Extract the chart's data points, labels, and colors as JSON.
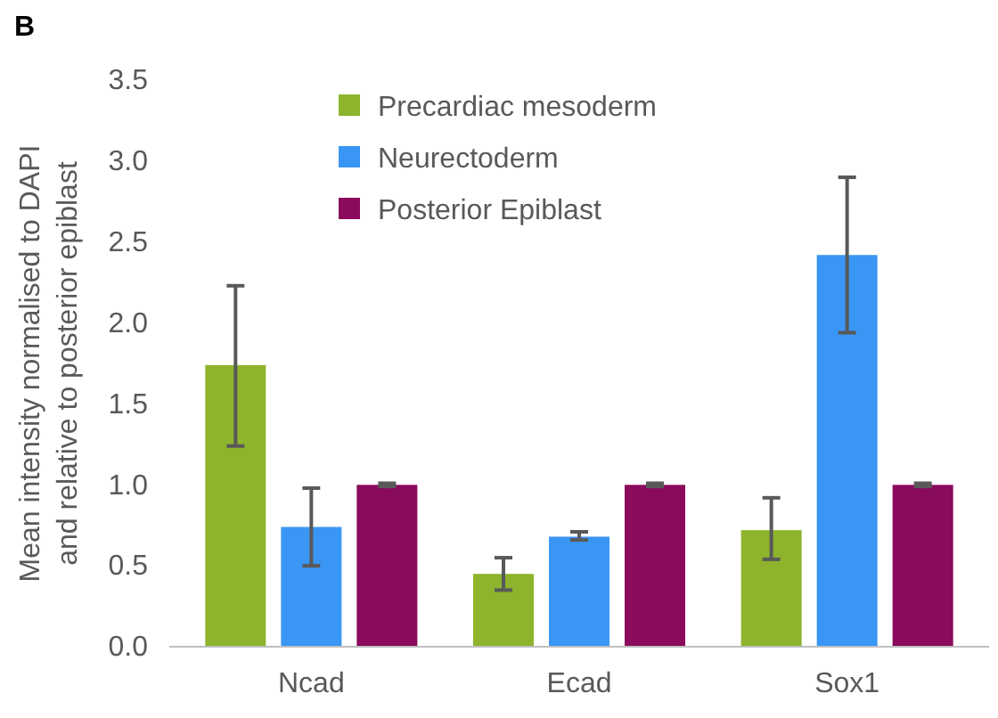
{
  "chart_data": {
    "type": "bar",
    "ylabel": "Mean intensity normalised to DAPI\nand relative to posterior epiblast",
    "annotations": [
      "B"
    ],
    "categories": [
      "Ncad",
      "Ecad",
      "Sox1"
    ],
    "series": [
      {
        "name": "Precardiac mesoderm",
        "color": "#8db42c",
        "values": [
          1.74,
          0.45,
          0.72
        ],
        "errors": [
          [
            1.24,
            2.23
          ],
          [
            0.35,
            0.55
          ],
          [
            0.54,
            0.92
          ]
        ]
      },
      {
        "name": "Neurectoderm",
        "color": "#3a96f4",
        "values": [
          0.74,
          0.68,
          2.42
        ],
        "errors": [
          [
            0.5,
            0.98
          ],
          [
            0.66,
            0.71
          ],
          [
            1.94,
            2.9
          ]
        ]
      },
      {
        "name": "Posterior Epiblast",
        "color": "#8a0a5c",
        "values": [
          1,
          1,
          1
        ],
        "errors": [
          0.01,
          0.01,
          0.01
        ]
      }
    ],
    "ylim": [
      0,
      3.5
    ],
    "yticks": [
      {
        "value": 0,
        "label": "0.0"
      },
      {
        "value": 0.5,
        "label": "0.5"
      },
      {
        "value": 1,
        "label": "1.0"
      },
      {
        "value": 1.5,
        "label": "1.5"
      },
      {
        "value": 2,
        "label": "2.0"
      },
      {
        "value": 2.5,
        "label": "2.5"
      },
      {
        "value": 3,
        "label": "3.0"
      },
      {
        "value": 3.5,
        "label": "3.5"
      }
    ],
    "grid": false,
    "legend": "top"
  }
}
